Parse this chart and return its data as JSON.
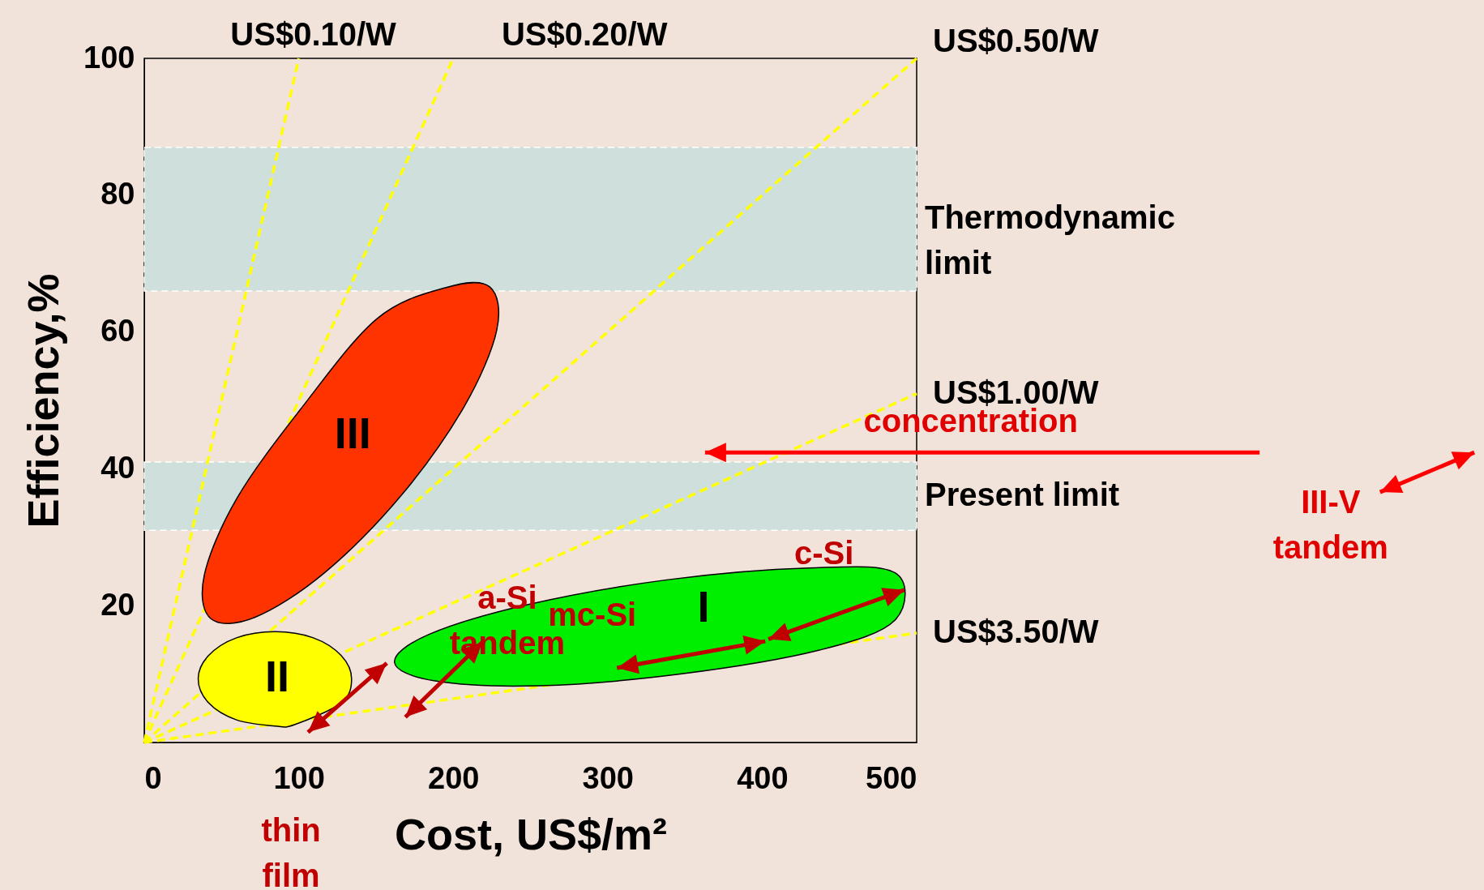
{
  "chart_data": {
    "type": "line",
    "xlabel": "Cost, US$/m²",
    "ylabel": "Efficiency,%",
    "xlim": [
      0,
      500
    ],
    "ylim": [
      0,
      100
    ],
    "xticks": [
      0,
      100,
      200,
      300,
      400,
      500
    ],
    "yticks": [
      20,
      40,
      60,
      80,
      100
    ],
    "grid": false,
    "line_style": "dashed",
    "marker": "none",
    "series": [
      {
        "name": "US$0.10/W",
        "color": "#ffff00",
        "x": [
          0,
          100
        ],
        "values": [
          0,
          100
        ]
      },
      {
        "name": "US$0.20/W",
        "color": "#ffff00",
        "x": [
          0,
          200
        ],
        "values": [
          0,
          100
        ]
      },
      {
        "name": "US$0.50/W",
        "color": "#ffff00",
        "x": [
          0,
          500
        ],
        "values": [
          0,
          100
        ]
      },
      {
        "name": "US$1.00/W",
        "color": "#ffff00",
        "x": [
          0,
          500
        ],
        "values": [
          0,
          51
        ]
      },
      {
        "name": "US$3.50/W",
        "color": "#ffff00",
        "x": [
          0,
          500
        ],
        "values": [
          0,
          16
        ]
      },
      {
        "type": "area",
        "color": "#ff3300",
        "x": [
          223.6,
          228.2,
          207.1,
          166.3,
          116.7,
          71.7,
          43.1,
          38.9,
          60.0,
          100.8,
          150.4,
          195.4
        ],
        "values": [
          66.6,
          60.3,
          49.1,
          36.1,
          24.8,
          18.3,
          18.1,
          24.5,
          35.7,
          48.6,
          61.9,
          66.5
        ]
      },
      {
        "type": "area",
        "color": "#ffff00",
        "x": [
          134.2,
          127.5,
          109.4,
          84.6,
          59.7,
          41.6,
          34.9,
          41.6,
          59.7,
          84.6,
          97.3,
          127.5
        ],
        "values": [
          9.3,
          12.7,
          15.3,
          16.2,
          15.3,
          12.7,
          9.3,
          5.8,
          3.3,
          2.4,
          2.6,
          5.8
        ]
      },
      {
        "type": "area",
        "color": "#00ee00",
        "x": [
          486.0,
          437.1,
          347.0,
          255.9,
          188.2,
          162.0,
          184.3,
          249.2,
          339.3,
          430.3,
          486.0
        ],
        "values": [
          17.9,
          13.5,
          10.0,
          8.3,
          9.0,
          11.7,
          15.8,
          20.2,
          23.8,
          25.5,
          24.8
        ]
      }
    ],
    "bands": [
      {
        "axis": "y",
        "from": 66,
        "to": 87,
        "label": "Thermodynamic limit",
        "color": "#cfe0dc"
      },
      {
        "axis": "y",
        "from": 31,
        "to": 41,
        "label": "Present limit",
        "color": "#cfe0dc"
      }
    ],
    "annotations": [
      "I",
      "II",
      "III",
      "thin film",
      "a-Si tandem",
      "mc-Si",
      "c-Si",
      "concentration",
      "III-V tandem"
    ]
  }
}
